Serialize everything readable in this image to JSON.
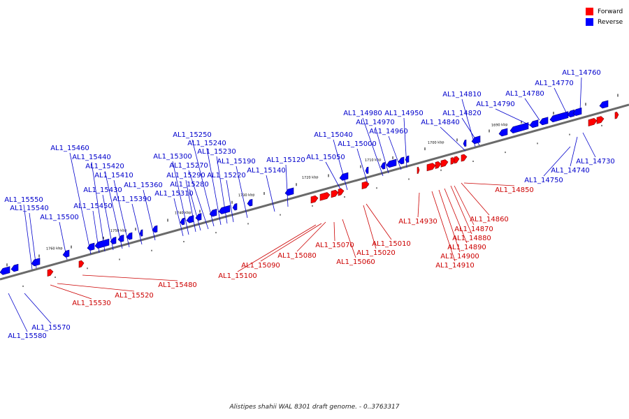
{
  "legend": {
    "forward_label": "Forward",
    "reverse_label": "Reverse",
    "forward_color": "#ff0000",
    "reverse_color": "#0000ff"
  },
  "caption": "Alistipes shahii WAL 8301 draft genome. - 0..3763317",
  "colors": {
    "label_forward": "#cc0000",
    "label_reverse": "#0000cc",
    "backbone": "#666666"
  },
  "ticks": [
    "1690 kbp",
    "1700 kbp",
    "1710 kbp",
    "1720 kbp",
    "1730 kbp",
    "1740 kbp",
    "1750 kbp",
    "1760 kbp"
  ],
  "reverse_genes": [
    "AL1_14760",
    "AL1_14770",
    "AL1_14780",
    "AL1_14790",
    "AL1_14810",
    "AL1_14820",
    "AL1_14840",
    "AL1_14950",
    "AL1_14960",
    "AL1_14970",
    "AL1_14980",
    "AL1_15000",
    "AL1_15040",
    "AL1_15050",
    "AL1_15120",
    "AL1_15140",
    "AL1_15190",
    "AL1_15220",
    "AL1_15230",
    "AL1_15240",
    "AL1_15250",
    "AL1_15270",
    "AL1_15280",
    "AL1_15290",
    "AL1_15300",
    "AL1_15310",
    "AL1_15360",
    "AL1_15390",
    "AL1_15410",
    "AL1_15420",
    "AL1_15430",
    "AL1_15440",
    "AL1_15450",
    "AL1_15460",
    "AL1_15500",
    "AL1_15540",
    "AL1_15550",
    "AL1_15570",
    "AL1_15580",
    "AL1_14730",
    "AL1_14740",
    "AL1_14750"
  ],
  "forward_genes": [
    "AL1_14850",
    "AL1_14860",
    "AL1_14870",
    "AL1_14880",
    "AL1_14890",
    "AL1_14900",
    "AL1_14910",
    "AL1_14930",
    "AL1_15010",
    "AL1_15020",
    "AL1_15060",
    "AL1_15070",
    "AL1_15080",
    "AL1_15090",
    "AL1_15100",
    "AL1_15480",
    "AL1_15520",
    "AL1_15530"
  ]
}
